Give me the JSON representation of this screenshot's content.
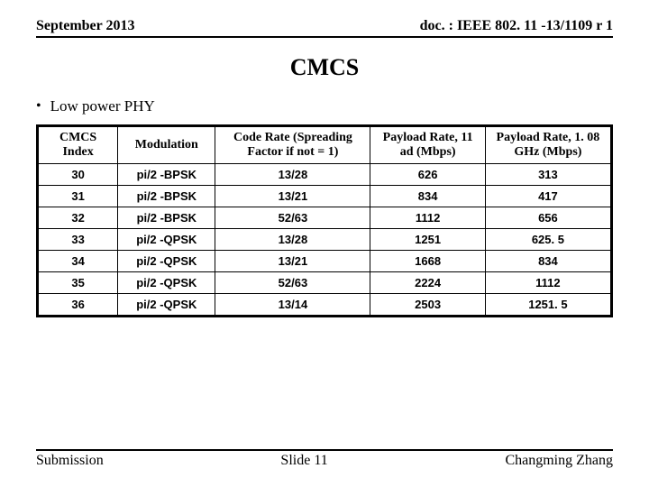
{
  "header": {
    "left": "September 2013",
    "right": "doc. : IEEE 802. 11 -13/1109 r 1"
  },
  "title": "CMCS",
  "section_label": "Low power PHY",
  "table": {
    "columns": [
      "CMCS Index",
      "Modulation",
      "Code Rate (Spreading Factor if not = 1)",
      "Payload Rate, 11 ad (Mbps)",
      "Payload Rate, 1. 08 GHz (Mbps)"
    ],
    "rows": [
      [
        "30",
        "pi/2 -BPSK",
        "13/28",
        "626",
        "313"
      ],
      [
        "31",
        "pi/2 -BPSK",
        "13/21",
        "834",
        "417"
      ],
      [
        "32",
        "pi/2 -BPSK",
        "52/63",
        "1112",
        "656"
      ],
      [
        "33",
        "pi/2 -QPSK",
        "13/28",
        "1251",
        "625. 5"
      ],
      [
        "34",
        "pi/2 -QPSK",
        "13/21",
        "1668",
        "834"
      ],
      [
        "35",
        "pi/2 -QPSK",
        "52/63",
        "2224",
        "1112"
      ],
      [
        "36",
        "pi/2 -QPSK",
        "13/14",
        "2503",
        "1251. 5"
      ]
    ],
    "col_widths": [
      "14%",
      "17%",
      "27%",
      "20%",
      "22%"
    ]
  },
  "footer": {
    "left": "Submission",
    "center": "Slide 11",
    "right": "Changming Zhang"
  }
}
